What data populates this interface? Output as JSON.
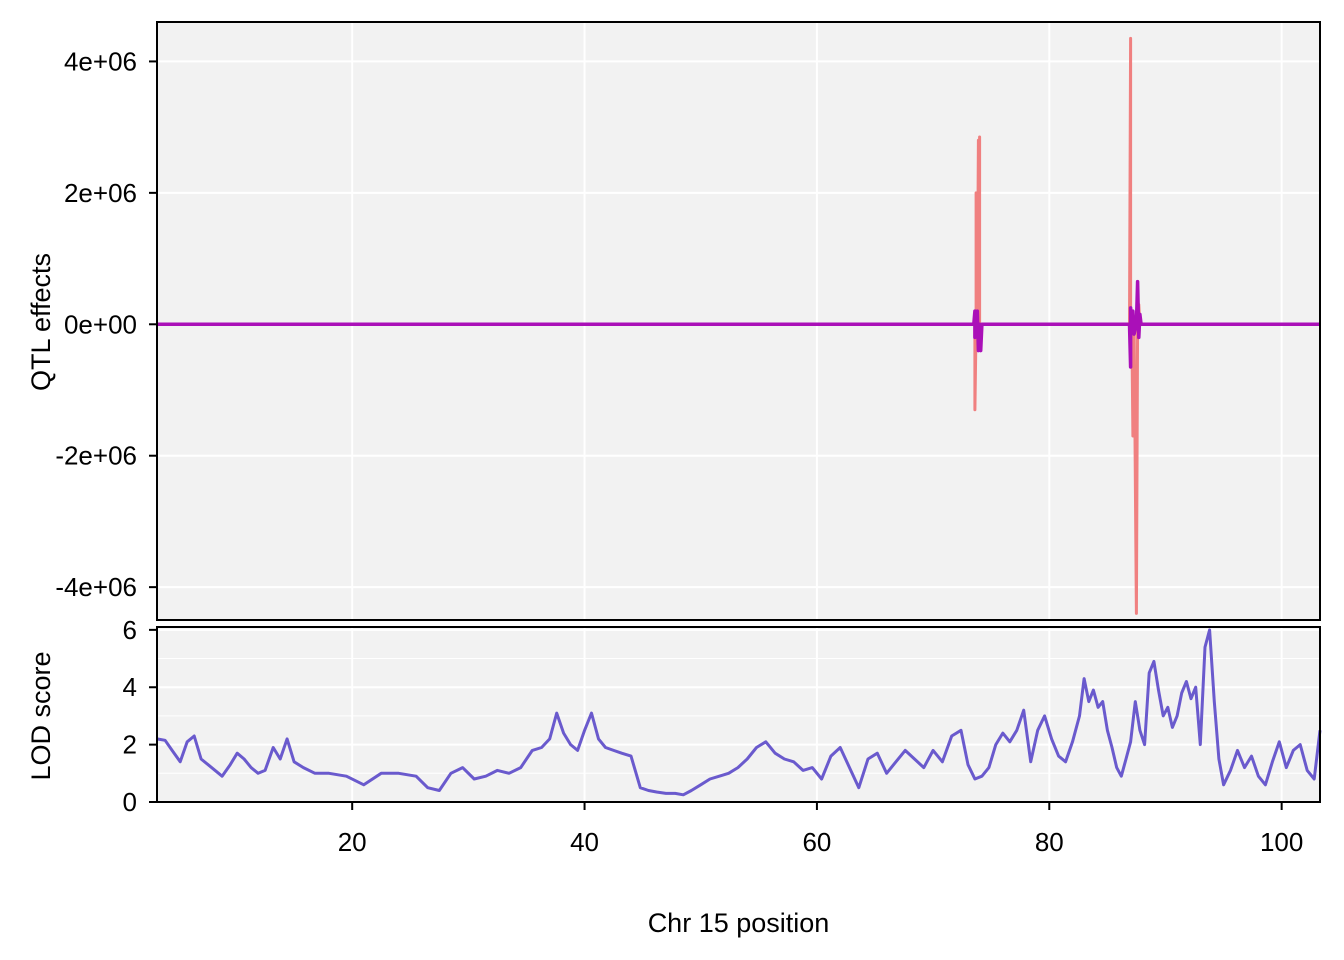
{
  "chart_data": [
    {
      "type": "line",
      "panel": "effects",
      "title": "",
      "xlabel": "",
      "ylabel": "QTL effects",
      "xlim": [
        3.2,
        103.3
      ],
      "ylim": [
        -4500000.0,
        4600000.0
      ],
      "x_gridlines": [
        20,
        40,
        60,
        80,
        100
      ],
      "yticks": [
        {
          "value": 4000000,
          "label": "4e+06"
        },
        {
          "value": 2000000,
          "label": "2e+06"
        },
        {
          "value": 0,
          "label": "0e+00"
        },
        {
          "value": -2000000,
          "label": "-2e+06"
        },
        {
          "value": -4000000,
          "label": "-4e+06"
        }
      ],
      "grid": true,
      "background": "#f2f2f2",
      "series": [
        {
          "color": "#f08080",
          "x": [
            3.2,
            73.6,
            73.6,
            73.7,
            73.7,
            73.8,
            73.9,
            73.9,
            74.0,
            74.0,
            74.1,
            86.9,
            87.0,
            87.0,
            87.1,
            87.2,
            87.3,
            87.5,
            87.6,
            87.7,
            87.8,
            87.9,
            103.3
          ],
          "values": [
            0,
            0,
            -1300000,
            0,
            2000000,
            0,
            2800000,
            -300000,
            2850000,
            0,
            0,
            0,
            4350000,
            -600000,
            0,
            -1700000,
            0,
            -4400000,
            0,
            300000,
            0,
            0,
            0
          ]
        },
        {
          "color": "#aa10b8",
          "x": [
            3.2,
            73.5,
            73.6,
            73.6,
            73.7,
            73.8,
            73.9,
            74.0,
            74.1,
            74.2,
            86.9,
            87.0,
            87.0,
            87.1,
            87.2,
            87.3,
            87.5,
            87.6,
            87.7,
            87.8,
            87.9,
            103.3
          ],
          "values": [
            0,
            0,
            200000,
            -200000,
            0,
            200000,
            -400000,
            0,
            -400000,
            0,
            0,
            -650000,
            250000,
            0,
            200000,
            -150000,
            0,
            650000,
            -200000,
            150000,
            0,
            0
          ]
        }
      ]
    },
    {
      "type": "line",
      "panel": "lod",
      "title": "",
      "xlabel": "Chr 15 position",
      "ylabel": "LOD score",
      "xlim": [
        3.2,
        103.3
      ],
      "ylim": [
        0,
        6.1
      ],
      "xticks": [
        20,
        40,
        60,
        80,
        100
      ],
      "yticks": [
        0,
        2,
        4,
        6
      ],
      "grid": true,
      "background": "#f2f2f2",
      "series": [
        {
          "color": "#6a5acd",
          "x": [
            3.2,
            3.9,
            4.5,
            5.2,
            5.8,
            6.4,
            7.0,
            7.6,
            8.2,
            8.8,
            9.5,
            10.1,
            10.7,
            11.3,
            11.9,
            12.5,
            13.2,
            13.8,
            14.4,
            15.0,
            15.8,
            16.8,
            18.0,
            19.5,
            21.0,
            22.5,
            24.0,
            25.5,
            26.5,
            27.5,
            28.5,
            29.5,
            30.5,
            31.5,
            32.5,
            33.5,
            34.5,
            35.5,
            36.3,
            37.0,
            37.6,
            38.2,
            38.8,
            39.4,
            40.0,
            40.6,
            41.2,
            41.8,
            42.5,
            43.2,
            44.0,
            44.8,
            45.5,
            46.2,
            47.0,
            47.8,
            48.5,
            49.2,
            50.0,
            50.8,
            51.6,
            52.4,
            53.2,
            54.0,
            54.8,
            55.6,
            56.4,
            57.2,
            58.0,
            58.8,
            59.6,
            60.4,
            61.2,
            62.0,
            62.8,
            63.6,
            64.4,
            65.2,
            66.0,
            66.8,
            67.6,
            68.4,
            69.2,
            70.0,
            70.8,
            71.6,
            72.4,
            73.0,
            73.6,
            74.2,
            74.8,
            75.4,
            76.0,
            76.6,
            77.2,
            77.8,
            78.4,
            79.0,
            79.6,
            80.2,
            80.8,
            81.4,
            82.0,
            82.6,
            83.0,
            83.4,
            83.8,
            84.2,
            84.6,
            85.0,
            85.4,
            85.8,
            86.2,
            86.6,
            87.0,
            87.4,
            87.8,
            88.2,
            88.6,
            89.0,
            89.4,
            89.8,
            90.2,
            90.6,
            91.0,
            91.4,
            91.8,
            92.2,
            92.6,
            93.0,
            93.4,
            93.8,
            94.2,
            94.6,
            95.0,
            95.6,
            96.2,
            96.8,
            97.4,
            98.0,
            98.6,
            99.2,
            99.8,
            100.4,
            101.0,
            101.6,
            102.2,
            102.8,
            103.3
          ],
          "values": [
            2.2,
            2.15,
            1.8,
            1.4,
            2.1,
            2.3,
            1.5,
            1.3,
            1.1,
            0.9,
            1.3,
            1.7,
            1.5,
            1.2,
            1.0,
            1.1,
            1.9,
            1.5,
            2.2,
            1.4,
            1.2,
            1.0,
            1.0,
            0.9,
            0.6,
            1.0,
            1.0,
            0.9,
            0.5,
            0.4,
            1.0,
            1.2,
            0.8,
            0.9,
            1.1,
            1.0,
            1.2,
            1.8,
            1.9,
            2.2,
            3.1,
            2.4,
            2.0,
            1.8,
            2.5,
            3.1,
            2.2,
            1.9,
            1.8,
            1.7,
            1.6,
            0.5,
            0.4,
            0.35,
            0.3,
            0.3,
            0.25,
            0.4,
            0.6,
            0.8,
            0.9,
            1.0,
            1.2,
            1.5,
            1.9,
            2.1,
            1.7,
            1.5,
            1.4,
            1.1,
            1.2,
            0.8,
            1.6,
            1.9,
            1.2,
            0.5,
            1.5,
            1.7,
            1.0,
            1.4,
            1.8,
            1.5,
            1.2,
            1.8,
            1.4,
            2.3,
            2.5,
            1.3,
            0.8,
            0.9,
            1.2,
            2.0,
            2.4,
            2.1,
            2.5,
            3.2,
            1.4,
            2.5,
            3.0,
            2.2,
            1.6,
            1.4,
            2.1,
            3.0,
            4.3,
            3.5,
            3.9,
            3.3,
            3.5,
            2.5,
            1.9,
            1.2,
            0.9,
            1.5,
            2.1,
            3.5,
            2.5,
            2.0,
            4.5,
            4.9,
            3.9,
            3.0,
            3.3,
            2.6,
            3.0,
            3.8,
            4.2,
            3.6,
            4.0,
            2.0,
            5.4,
            6.0,
            3.5,
            1.5,
            0.6,
            1.1,
            1.8,
            1.2,
            1.6,
            0.9,
            0.6,
            1.4,
            2.1,
            1.2,
            1.8,
            2.0,
            1.1,
            0.8,
            2.5
          ]
        }
      ]
    }
  ]
}
